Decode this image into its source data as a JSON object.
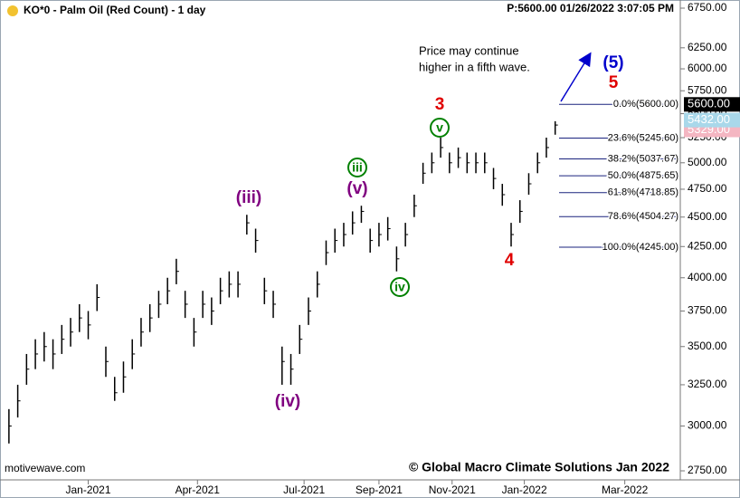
{
  "chart_data": {
    "type": "ohlc",
    "title": "KO*0 - Palm Oil (Red Count) - 1 day",
    "subtitle": "P:5600.00 01/26/2022 3:07:05 PM",
    "color": "#000000",
    "log_scale": true,
    "high": [
      3100,
      3250,
      3450,
      3550,
      3600,
      3550,
      3650,
      3700,
      3800,
      3750,
      3950,
      3500,
      3300,
      3400,
      3550,
      3700,
      3800,
      3900,
      4000,
      4150,
      3900,
      3700,
      3900,
      3850,
      4000,
      4050,
      4050,
      4520,
      4400,
      4000,
      3900,
      3500,
      3450,
      3650,
      3850,
      4050,
      4300,
      4400,
      4450,
      4550,
      4600,
      4400,
      4450,
      4500,
      4250,
      4450,
      4700,
      5000,
      5100,
      5250,
      5100,
      5150,
      5100,
      5100,
      5100,
      4950,
      4800,
      4450,
      4650,
      4900,
      5100,
      5250,
      5420
    ],
    "low": [
      2900,
      3050,
      3250,
      3350,
      3400,
      3350,
      3450,
      3500,
      3600,
      3550,
      3750,
      3300,
      3150,
      3200,
      3350,
      3500,
      3600,
      3700,
      3800,
      3950,
      3700,
      3500,
      3700,
      3650,
      3800,
      3850,
      3850,
      4350,
      4200,
      3800,
      3700,
      3250,
      3250,
      3450,
      3650,
      3850,
      4100,
      4200,
      4250,
      4350,
      4450,
      4200,
      4250,
      4300,
      4050,
      4250,
      4500,
      4800,
      4900,
      5050,
      4900,
      4950,
      4900,
      4900,
      4900,
      4750,
      4600,
      4250,
      4450,
      4700,
      4900,
      5050,
      5280
    ],
    "close": [
      3000,
      3150,
      3350,
      3450,
      3500,
      3450,
      3550,
      3600,
      3700,
      3650,
      3850,
      3400,
      3200,
      3300,
      3450,
      3600,
      3700,
      3800,
      3900,
      4050,
      3800,
      3600,
      3800,
      3750,
      3900,
      3950,
      3950,
      4450,
      4300,
      3900,
      3800,
      3400,
      3350,
      3550,
      3750,
      3950,
      4200,
      4300,
      4350,
      4450,
      4550,
      4300,
      4350,
      4400,
      4150,
      4350,
      4600,
      4900,
      5000,
      5150,
      5000,
      5050,
      5000,
      5000,
      5000,
      4850,
      4700,
      4350,
      4550,
      4800,
      5000,
      5150,
      5380
    ],
    "xlim": [
      -0.5,
      76.2
    ],
    "xticks": [
      {
        "value": 9,
        "label": "Jan-2021"
      },
      {
        "value": 21.4,
        "label": "Apr-2021"
      },
      {
        "value": 33.5,
        "label": "Jul-2021"
      },
      {
        "value": 42,
        "label": "Sep-2021"
      },
      {
        "value": 50.3,
        "label": "Nov-2021"
      },
      {
        "value": 58.5,
        "label": "Jan-2022"
      },
      {
        "value": 69.9,
        "label": "Mar-2022"
      }
    ],
    "ylim": [
      2750,
      6750
    ],
    "yticks": [
      {
        "value": 2750,
        "label": "2750.00"
      },
      {
        "value": 3000,
        "label": "3000.00"
      },
      {
        "value": 3250,
        "label": "3250.00"
      },
      {
        "value": 3500,
        "label": "3500.00"
      },
      {
        "value": 3750,
        "label": "3750.00"
      },
      {
        "value": 4000,
        "label": "4000.00"
      },
      {
        "value": 4250,
        "label": "4250.00"
      },
      {
        "value": 4500,
        "label": "4500.00"
      },
      {
        "value": 4750,
        "label": "4750.00"
      },
      {
        "value": 5000,
        "label": "5000.00"
      },
      {
        "value": 5250,
        "label": "5250.00"
      },
      {
        "value": 5500,
        "label": "5500.00"
      },
      {
        "value": 5750,
        "label": "5750.00"
      },
      {
        "value": 6000,
        "label": "6000.00"
      },
      {
        "value": 6250,
        "label": "6250.00"
      },
      {
        "value": 6750,
        "label": "6750.00"
      }
    ],
    "fib_levels": [
      {
        "value": 5600,
        "label": "0.0%(5600.00)"
      },
      {
        "value": 5245.6,
        "label": "23.6%(5245.60)"
      },
      {
        "value": 5037.67,
        "label": "38.2%(5037.67)"
      },
      {
        "value": 4875.65,
        "label": "50.0%(4875.65)"
      },
      {
        "value": 4718.85,
        "label": "61.8%(4718.85)"
      },
      {
        "value": 4504.27,
        "label": "78.6%(4504.27)"
      },
      {
        "value": 4245,
        "label": "100.0%(4245.00)"
      }
    ],
    "price_tags": [
      {
        "value": 5329,
        "label": "5329.00",
        "color": "#f4b6c2"
      },
      {
        "value": 5432,
        "label": "5432.00",
        "color": "#a9d8ea"
      },
      {
        "value": 5600,
        "label": "5600.00",
        "color": "#000000"
      }
    ],
    "wave_labels": [
      {
        "text": "(iii)",
        "color": "#800080",
        "circled": false
      },
      {
        "text": "(iv)",
        "color": "#800080",
        "circled": false
      },
      {
        "text": "(v)",
        "color": "#800080",
        "circled": false
      },
      {
        "text": "iii",
        "color": "#008000",
        "circled": true
      },
      {
        "text": "iv",
        "color": "#008000",
        "circled": true
      },
      {
        "text": "v",
        "color": "#008000",
        "circled": true
      },
      {
        "text": "3",
        "color": "#e00000",
        "circled": false
      },
      {
        "text": "4",
        "color": "#e00000",
        "circled": false
      },
      {
        "text": "5",
        "color": "#e00000",
        "circled": false
      },
      {
        "text": "(5)",
        "color": "#0000cc",
        "circled": false
      }
    ],
    "annotation": [
      "Price may continue",
      "higher in a fifth wave."
    ],
    "watermark": "motivewave.com",
    "copyright": "© Global Macro Climate Solutions Jan 2022"
  }
}
